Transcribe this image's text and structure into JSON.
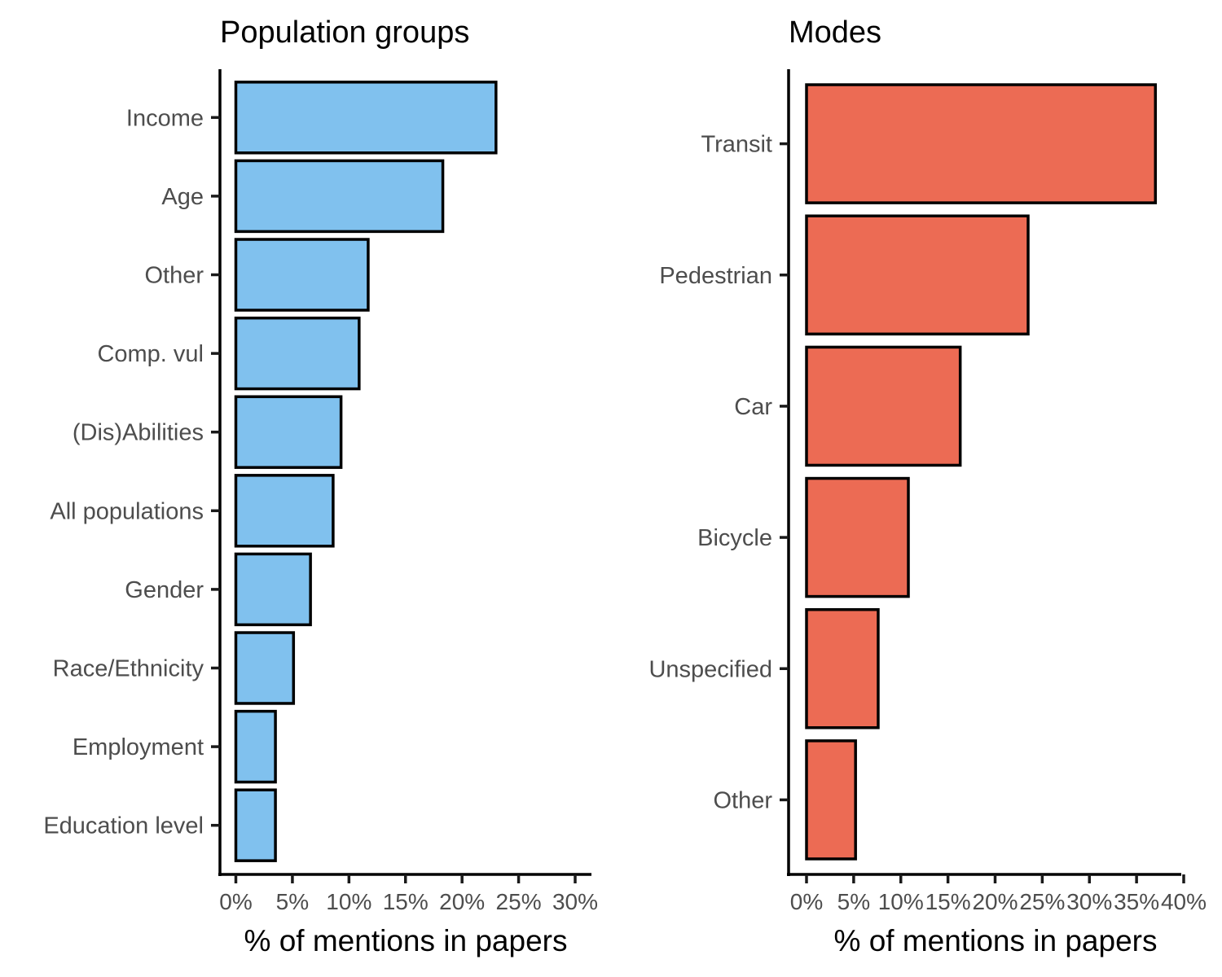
{
  "chart_data": [
    {
      "type": "bar",
      "orientation": "horizontal",
      "title": "Population groups",
      "xlabel": "% of mentions in papers",
      "ylabel": "",
      "categories": [
        "Income",
        "Age",
        "Other",
        "Comp. vul",
        "(Dis)Abilities",
        "All populations",
        "Gender",
        "Race/Ethnicity",
        "Employment",
        "Education level"
      ],
      "values": [
        23.0,
        18.3,
        11.7,
        10.9,
        9.3,
        8.6,
        6.6,
        5.1,
        3.5,
        3.5
      ],
      "xlim": [
        0,
        30
      ],
      "xticks": [
        0,
        5,
        10,
        15,
        20,
        25,
        30
      ],
      "xtick_labels": [
        "0%",
        "5%",
        "10%",
        "15%",
        "20%",
        "25%",
        "30%"
      ],
      "bar_color": "#80c1ee",
      "grid": false
    },
    {
      "type": "bar",
      "orientation": "horizontal",
      "title": "Modes",
      "xlabel": "% of mentions in papers",
      "ylabel": "",
      "categories": [
        "Transit",
        "Pedestrian",
        "Car",
        "Bicycle",
        "Unspecified",
        "Other"
      ],
      "values": [
        37.0,
        23.5,
        16.3,
        10.8,
        7.6,
        5.2
      ],
      "xlim": [
        0,
        40
      ],
      "xticks": [
        0,
        5,
        10,
        15,
        20,
        25,
        30,
        35,
        40
      ],
      "xtick_labels": [
        "0%",
        "5%",
        "10%",
        "15%",
        "20%",
        "25%",
        "30%",
        "35%",
        "40%"
      ],
      "bar_color": "#ec6b54",
      "grid": false
    }
  ]
}
